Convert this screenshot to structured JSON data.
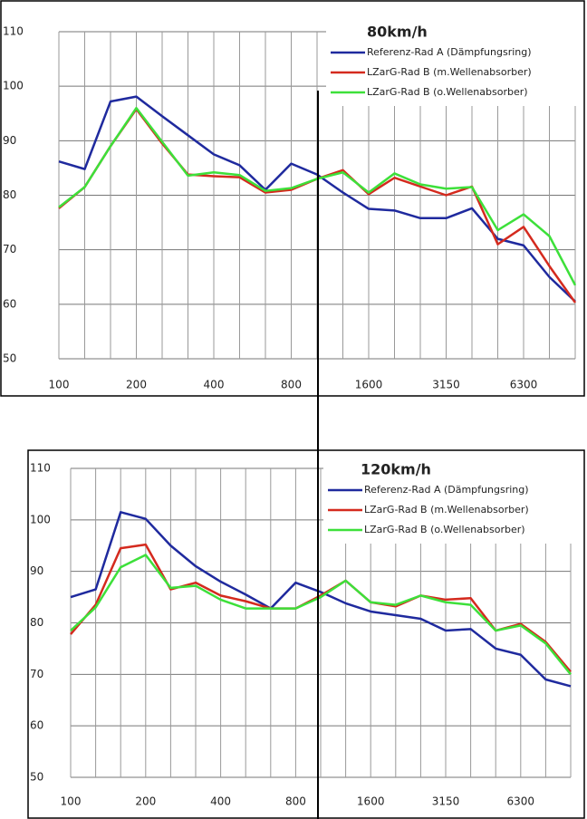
{
  "chart_data": [
    {
      "type": "line",
      "title": "80km/h",
      "categories": [
        "100",
        null,
        null,
        "200",
        null,
        null,
        "400",
        null,
        null,
        "800",
        null,
        null,
        "1600",
        null,
        null,
        "3150",
        null,
        null,
        "6300",
        null,
        null
      ],
      "series": [
        {
          "name": "Referenz-Rad A (Dämpfungsring)",
          "color": "#1f2a9e",
          "values": [
            86.2,
            84.8,
            97.2,
            98.1,
            94.5,
            91,
            87.5,
            85.5,
            81,
            85.8,
            83.8,
            80.5,
            77.5,
            77.2,
            75.8,
            75.8,
            77.6,
            72,
            70.8,
            65,
            60.5
          ]
        },
        {
          "name": "LZarG-Rad B (m.Wellenabsorber)",
          "color": "#d42a1e",
          "values": [
            77.6,
            81.5,
            89,
            95.8,
            89.5,
            83.8,
            83.5,
            83.3,
            80.5,
            81,
            83,
            84.6,
            80.2,
            83.2,
            81.6,
            80,
            81.6,
            71,
            74.2,
            67,
            60.3
          ]
        },
        {
          "name": "LZarG-Rad B (o.Wellenabsorber)",
          "color": "#3de03a",
          "values": [
            77.8,
            81.5,
            89,
            96,
            89.8,
            83.6,
            84.2,
            83.7,
            80.8,
            81.3,
            83,
            84.2,
            80.5,
            84,
            82,
            81.2,
            81.5,
            73.6,
            76.5,
            72.5,
            63.5
          ]
        }
      ],
      "ylim": [
        50,
        110
      ],
      "yticks": [
        50,
        60,
        70,
        80,
        90,
        100,
        110
      ],
      "grid": true,
      "legend": "upper right"
    },
    {
      "type": "line",
      "title": "120km/h",
      "categories": [
        "100",
        null,
        null,
        "200",
        null,
        null,
        "400",
        null,
        null,
        "800",
        null,
        null,
        "1600",
        null,
        null,
        "3150",
        null,
        null,
        "6300",
        null,
        null
      ],
      "series": [
        {
          "name": "Referenz-Rad A (Dämpfungsring)",
          "color": "#1f2a9e",
          "values": [
            85,
            86.5,
            101.5,
            100.2,
            95,
            91,
            88,
            85.5,
            82.8,
            87.8,
            86,
            83.8,
            82.2,
            81.5,
            80.8,
            78.5,
            78.8,
            75,
            73.8,
            69,
            67.7
          ]
        },
        {
          "name": "LZarG-Rad B (m.Wellenabsorber)",
          "color": "#d42a1e",
          "values": [
            77.8,
            83.5,
            94.5,
            95.2,
            86.5,
            87.8,
            85.3,
            84.2,
            82.8,
            82.8,
            85.3,
            88.2,
            84,
            83.2,
            85.3,
            84.5,
            84.8,
            78.5,
            79.8,
            76.3,
            70.5
          ]
        },
        {
          "name": "LZarG-Rad B (o.Wellenabsorber)",
          "color": "#3de03a",
          "values": [
            78.5,
            83,
            90.8,
            93.2,
            86.8,
            87.2,
            84.5,
            82.8,
            82.8,
            82.8,
            85,
            88.2,
            84,
            83.5,
            85.3,
            84,
            83.5,
            78.5,
            79.5,
            76,
            70
          ]
        }
      ],
      "ylim": [
        50,
        110
      ],
      "yticks": [
        50,
        60,
        70,
        80,
        90,
        100,
        110
      ],
      "grid": true,
      "legend": "upper right"
    }
  ]
}
